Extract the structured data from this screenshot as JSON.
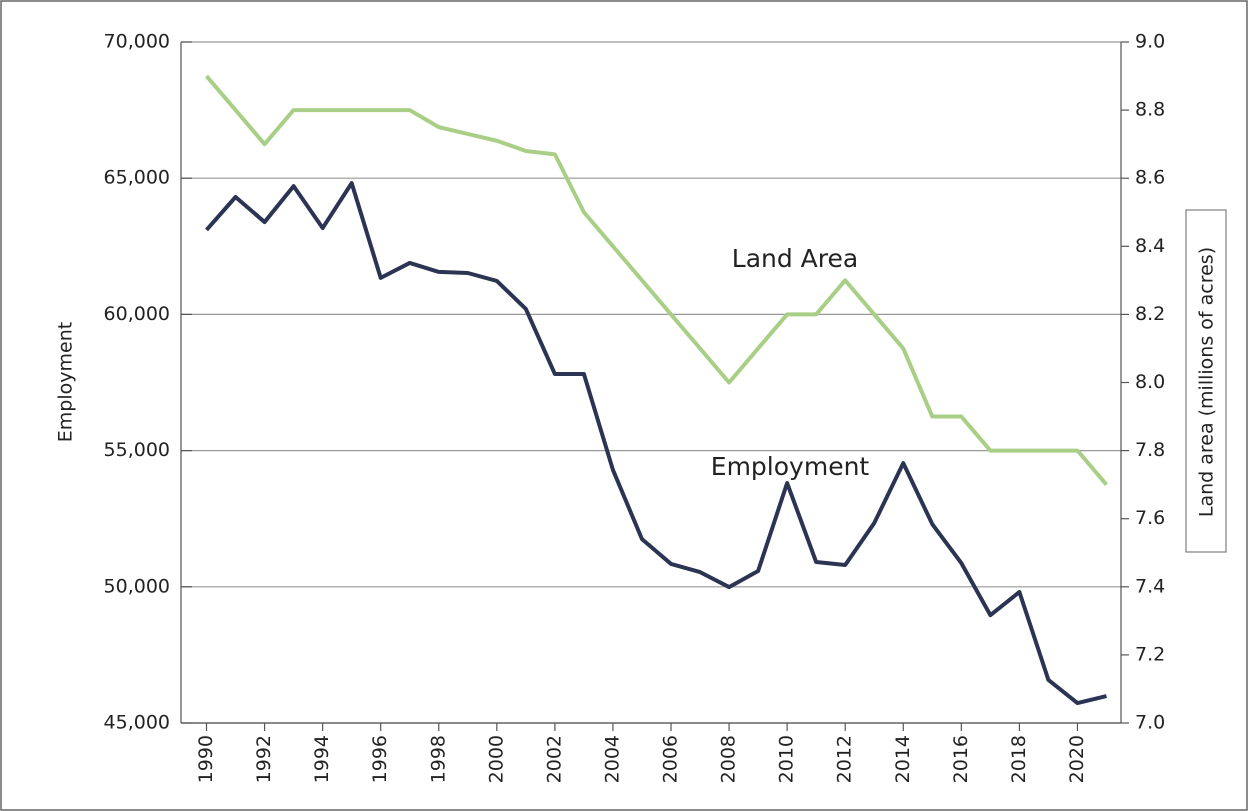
{
  "chart_data": {
    "type": "line",
    "y_label": "Employment",
    "y2_label": "Land area (millions of acres)",
    "x": [
      1990,
      1991,
      1992,
      1993,
      1994,
      1995,
      1996,
      1997,
      1998,
      1999,
      2000,
      2001,
      2002,
      2003,
      2004,
      2005,
      2006,
      2007,
      2008,
      2009,
      2010,
      2011,
      2012,
      2013,
      2014,
      2015,
      2016,
      2017,
      2018,
      2019,
      2020,
      2021
    ],
    "xlim": [
      1989.5,
      2021.5
    ],
    "xticks": [
      1990,
      1992,
      1994,
      1996,
      1998,
      2000,
      2002,
      2004,
      2006,
      2008,
      2010,
      2012,
      2014,
      2016,
      2018,
      2020
    ],
    "ylim": [
      45000,
      70000
    ],
    "yticks": [
      {
        "value": 45000,
        "label": "45,000"
      },
      {
        "value": 50000,
        "label": "50,000"
      },
      {
        "value": 55000,
        "label": "55,000"
      },
      {
        "value": 60000,
        "label": "60,000"
      },
      {
        "value": 65000,
        "label": "65,000"
      },
      {
        "value": 70000,
        "label": "70,000"
      }
    ],
    "y2lim": [
      7.0,
      9.0
    ],
    "y2ticks": [
      {
        "value": 7.0,
        "label": "7.0"
      },
      7.2,
      7.4,
      7.6,
      7.8,
      {
        "value": 8.0,
        "label": "8.0"
      },
      8.2,
      8.4,
      8.6,
      8.8,
      {
        "value": 9.0,
        "label": "9.0"
      }
    ],
    "grid": true,
    "series": [
      {
        "name": "Employment",
        "color": "#2b3553",
        "values": [
          63100,
          64310,
          63390,
          64710,
          63170,
          64820,
          61340,
          61890,
          61560,
          61520,
          61230,
          60200,
          57810,
          57810,
          54290,
          51750,
          50840,
          50540,
          49990,
          50580,
          53810,
          50910,
          50800,
          52340,
          54540,
          52300,
          50870,
          48960,
          49810,
          46580,
          45730,
          45990
        ]
      },
      {
        "name": "Land Area",
        "color": "#a9cf87",
        "axis": "y2",
        "values": [
          8.9,
          8.8,
          8.7,
          8.8,
          8.8,
          8.8,
          8.8,
          8.8,
          8.75,
          8.73,
          8.71,
          8.68,
          8.67,
          8.5,
          8.4,
          8.3,
          8.2,
          8.1,
          8.0,
          8.1,
          8.2,
          8.2,
          8.3,
          8.2,
          8.1,
          7.9,
          7.9,
          7.8,
          7.8,
          7.8,
          7.8,
          7.7
        ]
      }
    ]
  }
}
